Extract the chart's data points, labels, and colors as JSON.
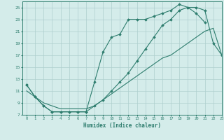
{
  "xlabel": "Humidex (Indice chaleur)",
  "bg_color": "#d4ecea",
  "line_color": "#2e7d6e",
  "grid_color": "#aecece",
  "line1_x": [
    0,
    1,
    2,
    3,
    4,
    5,
    6,
    7,
    8,
    9,
    10,
    11,
    12,
    13,
    14,
    15,
    16,
    17,
    18,
    19,
    20,
    21,
    22,
    23
  ],
  "line1_y": [
    12,
    10,
    8.5,
    7.5,
    7.5,
    7.5,
    7.5,
    7.5,
    8.5,
    9.5,
    11,
    12.5,
    14,
    16,
    18,
    20,
    22,
    23,
    24.5,
    25,
    25,
    24.5,
    19,
    17
  ],
  "line2_x": [
    0,
    1,
    2,
    3,
    4,
    5,
    6,
    7,
    8,
    9,
    10,
    11,
    12,
    13,
    14,
    15,
    16,
    17,
    18,
    19,
    20,
    21
  ],
  "line2_y": [
    12,
    10,
    8.5,
    7.5,
    7.5,
    7.5,
    7.5,
    7.5,
    12.5,
    17.5,
    20,
    20.5,
    23,
    23,
    23,
    23.5,
    24,
    24.5,
    25.5,
    25,
    24,
    22.5
  ],
  "line3_x": [
    0,
    1,
    2,
    3,
    4,
    5,
    6,
    7,
    8,
    9,
    10,
    11,
    12,
    13,
    14,
    15,
    16,
    17,
    18,
    19,
    20,
    21,
    22,
    23
  ],
  "line3_y": [
    11,
    10,
    9,
    8.5,
    8,
    8,
    8,
    8,
    8.5,
    9.5,
    10.5,
    11.5,
    12.5,
    13.5,
    14.5,
    15.5,
    16.5,
    17,
    18,
    19,
    20,
    21,
    21.5,
    17
  ],
  "xlim": [
    -0.5,
    23
  ],
  "ylim": [
    7,
    26
  ],
  "xticks": [
    0,
    1,
    2,
    3,
    4,
    5,
    6,
    7,
    8,
    9,
    10,
    11,
    12,
    13,
    14,
    15,
    16,
    17,
    18,
    19,
    20,
    21,
    22,
    23
  ],
  "yticks": [
    7,
    9,
    11,
    13,
    15,
    17,
    19,
    21,
    23,
    25
  ]
}
